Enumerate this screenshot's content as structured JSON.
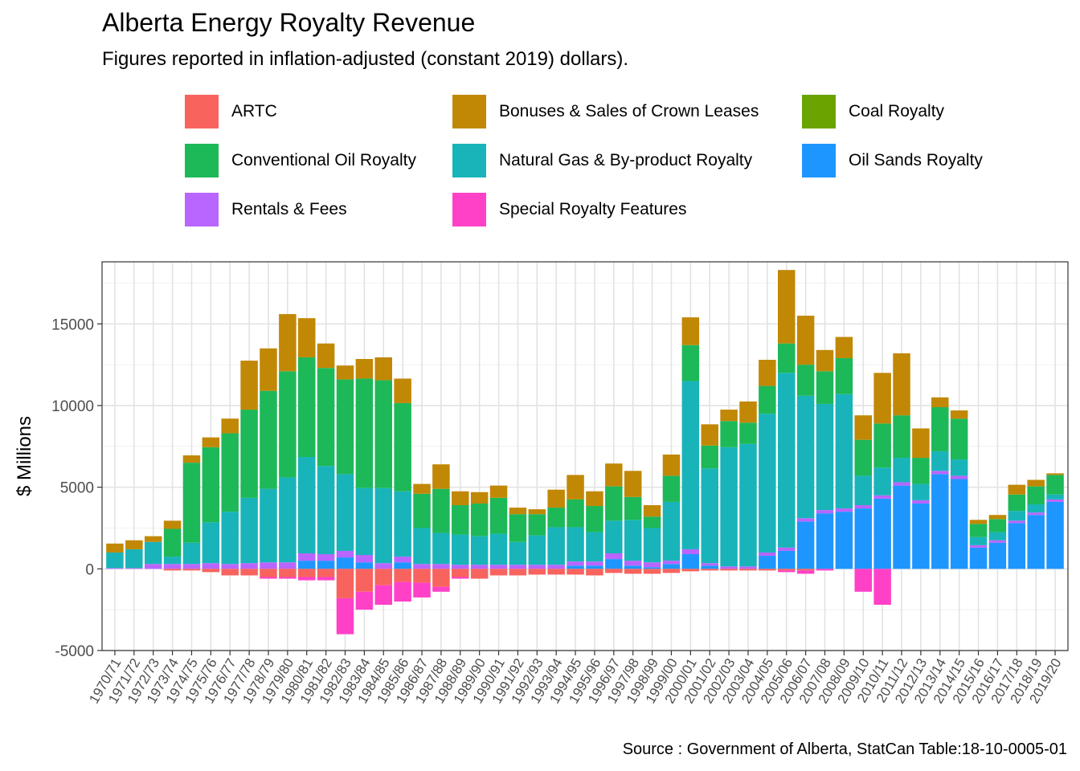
{
  "chart_data": {
    "type": "bar",
    "stacked": true,
    "title": "Alberta Energy Royalty Revenue",
    "subtitle": "Figures reported in inflation-adjusted (constant 2019) dollars).",
    "caption": "Source : Government of Alberta, StatCan Table:18-10-0005-01",
    "xlabel": "",
    "ylabel": "$ Millions",
    "ylim": [
      -5000,
      18800
    ],
    "yticks": [
      -5000,
      0,
      5000,
      10000,
      15000
    ],
    "grid": true,
    "legend_position": "top",
    "categories": [
      "1970/71",
      "1971/72",
      "1972/73",
      "1973/74",
      "1974/75",
      "1975/76",
      "1976/77",
      "1977/78",
      "1978/79",
      "1979/80",
      "1980/81",
      "1981/82",
      "1982/83",
      "1983/84",
      "1984/85",
      "1985/86",
      "1986/87",
      "1987/88",
      "1988/89",
      "1989/90",
      "1990/91",
      "1991/92",
      "1992/93",
      "1993/94",
      "1994/95",
      "1995/96",
      "1996/97",
      "1997/98",
      "1998/99",
      "1999/00",
      "2000/01",
      "2001/02",
      "2002/03",
      "2003/04",
      "2004/05",
      "2005/06",
      "2006/07",
      "2007/08",
      "2008/09",
      "2009/10",
      "2010/11",
      "2011/12",
      "2012/13",
      "2013/14",
      "2014/15",
      "2015/16",
      "2016/17",
      "2017/18",
      "2018/19",
      "2019/20"
    ],
    "series": [
      {
        "name": "Oil Sands Royalty",
        "color": "#1E96FF",
        "values": [
          0,
          0,
          0,
          0,
          0,
          0,
          0,
          0,
          0,
          0,
          500,
          500,
          700,
          400,
          0,
          400,
          0,
          0,
          0,
          0,
          0,
          0,
          0,
          0,
          200,
          200,
          600,
          200,
          100,
          300,
          900,
          200,
          0,
          0,
          800,
          1100,
          2900,
          3400,
          3500,
          3700,
          4300,
          5100,
          4000,
          5800,
          5500,
          1300,
          1600,
          2800,
          3300,
          4100
        ]
      },
      {
        "name": "Rentals & Fees",
        "color": "#B965FF",
        "values": [
          50,
          50,
          300,
          300,
          300,
          350,
          300,
          350,
          400,
          400,
          450,
          400,
          400,
          450,
          350,
          350,
          300,
          300,
          250,
          250,
          250,
          250,
          250,
          250,
          250,
          250,
          350,
          300,
          300,
          200,
          300,
          150,
          150,
          150,
          200,
          200,
          200,
          200,
          200,
          200,
          200,
          200,
          200,
          200,
          200,
          150,
          150,
          150,
          150,
          150
        ]
      },
      {
        "name": "Natural Gas & By-product Royalty",
        "color": "#18B4B9",
        "values": [
          950,
          1150,
          1350,
          450,
          1300,
          2500,
          3200,
          4000,
          4500,
          5200,
          5900,
          5400,
          4700,
          4100,
          4600,
          4000,
          2200,
          1900,
          1850,
          1750,
          1900,
          1400,
          1800,
          2300,
          2100,
          1800,
          2000,
          2500,
          2100,
          3600,
          10300,
          5800,
          7300,
          7500,
          8500,
          10700,
          7500,
          6500,
          7000,
          1800,
          1700,
          1500,
          1000,
          1200,
          1000,
          500,
          500,
          600,
          500,
          300
        ]
      },
      {
        "name": "Conventional Oil Royalty",
        "color": "#1DB858",
        "values": [
          0,
          0,
          0,
          1700,
          4900,
          4600,
          4800,
          5400,
          6000,
          6500,
          6100,
          6000,
          5800,
          6700,
          6600,
          5400,
          2100,
          2700,
          1800,
          2000,
          2200,
          1700,
          1300,
          1200,
          1700,
          1600,
          2100,
          1400,
          700,
          1600,
          2200,
          1400,
          1600,
          1300,
          1700,
          1800,
          1900,
          2000,
          2200,
          2200,
          2700,
          2600,
          1600,
          2700,
          2500,
          800,
          800,
          1000,
          1100,
          1200
        ]
      },
      {
        "name": "Coal Royalty",
        "color": "#6BA400",
        "values": [
          0,
          0,
          0,
          0,
          0,
          0,
          0,
          0,
          0,
          0,
          0,
          0,
          0,
          0,
          0,
          0,
          0,
          0,
          0,
          0,
          0,
          0,
          0,
          0,
          0,
          0,
          0,
          0,
          0,
          0,
          0,
          0,
          0,
          0,
          0,
          0,
          0,
          0,
          0,
          0,
          0,
          0,
          0,
          0,
          0,
          0,
          0,
          0,
          0,
          0
        ]
      },
      {
        "name": "Bonuses & Sales of Crown Leases",
        "color": "#C18806",
        "values": [
          550,
          550,
          350,
          500,
          450,
          600,
          900,
          3000,
          2600,
          3500,
          2400,
          1500,
          850,
          1200,
          1400,
          1500,
          600,
          1500,
          850,
          700,
          750,
          400,
          300,
          1100,
          1500,
          900,
          1400,
          1600,
          700,
          1300,
          1700,
          1300,
          700,
          1300,
          1600,
          4500,
          3000,
          1300,
          1300,
          1500,
          3100,
          3800,
          1800,
          600,
          500,
          250,
          250,
          600,
          400,
          100
        ]
      },
      {
        "name": "ARTC",
        "color": "#F8635E",
        "values": [
          0,
          0,
          0,
          -100,
          -100,
          -200,
          -400,
          -400,
          -500,
          -500,
          -500,
          -500,
          -1800,
          -1400,
          -1000,
          -800,
          -850,
          -1100,
          -500,
          -600,
          -400,
          -400,
          -350,
          -350,
          -350,
          -400,
          -250,
          -300,
          -300,
          -250,
          -150,
          -100,
          -100,
          -100,
          -100,
          -100,
          -100,
          0,
          0,
          0,
          0,
          0,
          0,
          0,
          0,
          0,
          0,
          0,
          0,
          0
        ]
      },
      {
        "name": "Special Royalty Features",
        "color": "#FF41C8",
        "values": [
          0,
          0,
          0,
          0,
          0,
          0,
          0,
          0,
          -100,
          -100,
          -200,
          -200,
          -2200,
          -1100,
          -1200,
          -1200,
          -900,
          -300,
          -100,
          0,
          0,
          0,
          0,
          0,
          0,
          0,
          0,
          0,
          0,
          0,
          0,
          0,
          0,
          0,
          0,
          -100,
          -200,
          -100,
          0,
          -1400,
          -2200,
          0,
          0,
          0,
          0,
          0,
          0,
          0,
          0,
          0
        ]
      }
    ]
  }
}
